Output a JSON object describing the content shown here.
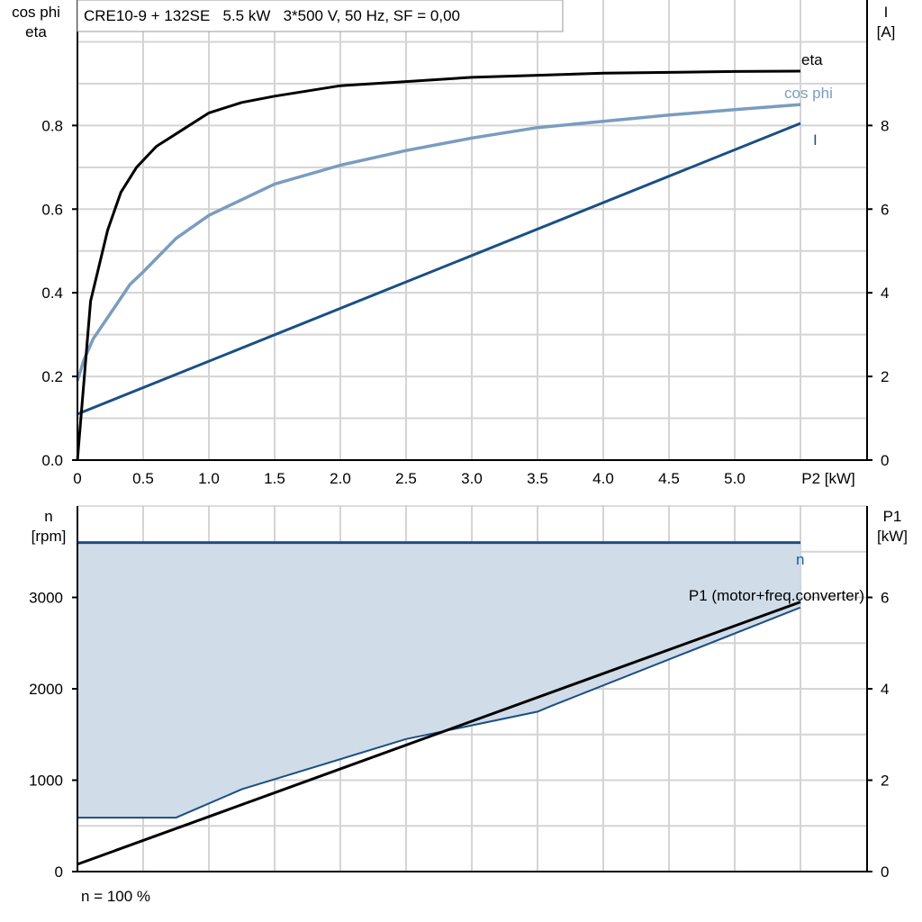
{
  "colors": {
    "eta": "#000000",
    "cos_phi": "#7a9cbf",
    "current": "#1a4f85",
    "speed": "#1a4f85",
    "speed_area": "#d0dce8",
    "p1": "#000000",
    "grid": "#d4d4d4"
  },
  "chart_data": [
    {
      "type": "line",
      "title": "CRE10-9 + 132SE   5.5 kW   3*500 V, 50 Hz, SF = 0,00",
      "xlabel": "P2 [kW]",
      "ylabel_left": [
        "cos phi",
        "eta"
      ],
      "ylabel_right": [
        "I",
        "[A]"
      ],
      "xlim": [
        0,
        6
      ],
      "ylim_left": [
        0,
        1.1
      ],
      "ylim_right": [
        0,
        11
      ],
      "grid": true,
      "x_ticks": [
        "0",
        "0.5",
        "1.0",
        "1.5",
        "2.0",
        "2.5",
        "3.0",
        "3.5",
        "4.0",
        "4.5",
        "5.0"
      ],
      "y_left_ticks": [
        "0.0",
        "0.2",
        "0.4",
        "0.6",
        "0.8"
      ],
      "y_right_ticks": [
        "0",
        "2",
        "4",
        "6",
        "8"
      ],
      "series": [
        {
          "name": "eta",
          "axis": "left",
          "x": [
            0,
            0.1,
            0.23,
            0.33,
            0.45,
            0.6,
            0.75,
            1.0,
            1.25,
            1.5,
            2.0,
            2.5,
            3.0,
            3.5,
            4.0,
            4.5,
            5.0,
            5.5
          ],
          "y": [
            0,
            0.38,
            0.55,
            0.64,
            0.7,
            0.75,
            0.78,
            0.83,
            0.855,
            0.87,
            0.895,
            0.905,
            0.915,
            0.92,
            0.925,
            0.927,
            0.929,
            0.93
          ]
        },
        {
          "name": "cos phi",
          "axis": "left",
          "x": [
            0,
            0.05,
            0.12,
            0.25,
            0.4,
            0.5,
            0.75,
            1.0,
            1.5,
            2.0,
            2.5,
            3.0,
            3.5,
            4.0,
            4.5,
            5.0,
            5.5
          ],
          "y": [
            0.19,
            0.24,
            0.29,
            0.35,
            0.42,
            0.45,
            0.53,
            0.585,
            0.66,
            0.705,
            0.74,
            0.77,
            0.795,
            0.81,
            0.825,
            0.838,
            0.85
          ]
        },
        {
          "name": "I",
          "axis": "right",
          "x": [
            0,
            5.5
          ],
          "y": [
            1.1,
            8.05
          ]
        }
      ]
    },
    {
      "type": "area",
      "ylabel_left": [
        "n",
        "[rpm]"
      ],
      "ylabel_right": [
        "P1",
        "[kW]"
      ],
      "xlim": [
        0,
        6
      ],
      "ylim_left": [
        0,
        4000
      ],
      "ylim_right": [
        0,
        8
      ],
      "grid": true,
      "y_left_ticks": [
        "0",
        "1000",
        "2000",
        "3000"
      ],
      "y_right_ticks": [
        "0",
        "2",
        "4",
        "6"
      ],
      "footer": "n = 100 %",
      "series": [
        {
          "name": "n",
          "axis": "left",
          "x": [
            0,
            5.5
          ],
          "y": [
            3600,
            3600
          ]
        },
        {
          "axis": "left",
          "role": "min speed",
          "x": [
            0,
            0.75,
            1.25,
            2.5,
            3.5,
            3.6,
            5.5
          ],
          "y": [
            590,
            590,
            900,
            1450,
            1750,
            1810,
            2890
          ]
        },
        {
          "name": "P1 (motor+freq.converter)",
          "axis": "right",
          "x": [
            0,
            5.5
          ],
          "y": [
            0.16,
            5.9
          ]
        }
      ]
    }
  ]
}
